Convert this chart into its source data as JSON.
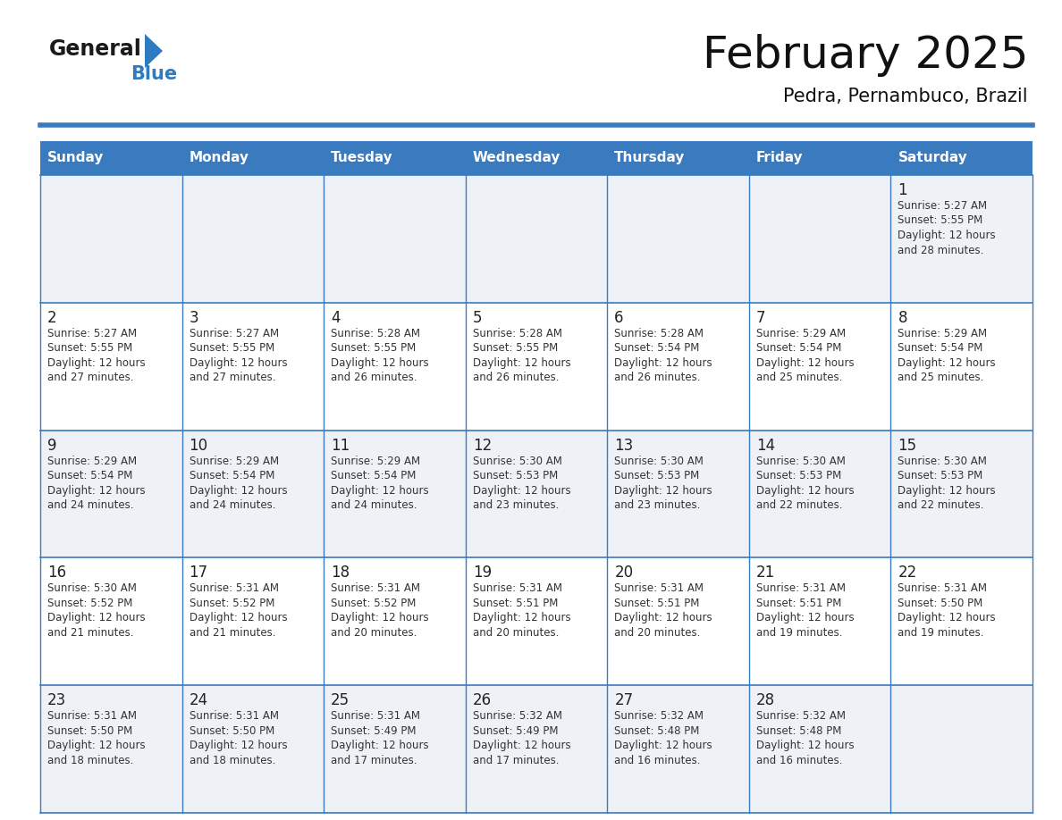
{
  "title": "February 2025",
  "subtitle": "Pedra, Pernambuco, Brazil",
  "days_of_week": [
    "Sunday",
    "Monday",
    "Tuesday",
    "Wednesday",
    "Thursday",
    "Friday",
    "Saturday"
  ],
  "header_bg": "#3a7abf",
  "header_text": "#ffffff",
  "cell_bg_light": "#eef2f7",
  "cell_bg_white": "#ffffff",
  "day_number_color": "#222222",
  "text_color": "#333333",
  "title_color": "#111111",
  "logo_general_color": "#1a1a1a",
  "logo_blue_color": "#2e7bbf",
  "weeks": [
    [
      {
        "day": null
      },
      {
        "day": null
      },
      {
        "day": null
      },
      {
        "day": null
      },
      {
        "day": null
      },
      {
        "day": null
      },
      {
        "day": 1,
        "sunrise": "5:27 AM",
        "sunset": "5:55 PM",
        "daylight": "12 hours",
        "daylight2": "and 28 minutes."
      }
    ],
    [
      {
        "day": 2,
        "sunrise": "5:27 AM",
        "sunset": "5:55 PM",
        "daylight": "12 hours",
        "daylight2": "and 27 minutes."
      },
      {
        "day": 3,
        "sunrise": "5:27 AM",
        "sunset": "5:55 PM",
        "daylight": "12 hours",
        "daylight2": "and 27 minutes."
      },
      {
        "day": 4,
        "sunrise": "5:28 AM",
        "sunset": "5:55 PM",
        "daylight": "12 hours",
        "daylight2": "and 26 minutes."
      },
      {
        "day": 5,
        "sunrise": "5:28 AM",
        "sunset": "5:55 PM",
        "daylight": "12 hours",
        "daylight2": "and 26 minutes."
      },
      {
        "day": 6,
        "sunrise": "5:28 AM",
        "sunset": "5:54 PM",
        "daylight": "12 hours",
        "daylight2": "and 26 minutes."
      },
      {
        "day": 7,
        "sunrise": "5:29 AM",
        "sunset": "5:54 PM",
        "daylight": "12 hours",
        "daylight2": "and 25 minutes."
      },
      {
        "day": 8,
        "sunrise": "5:29 AM",
        "sunset": "5:54 PM",
        "daylight": "12 hours",
        "daylight2": "and 25 minutes."
      }
    ],
    [
      {
        "day": 9,
        "sunrise": "5:29 AM",
        "sunset": "5:54 PM",
        "daylight": "12 hours",
        "daylight2": "and 24 minutes."
      },
      {
        "day": 10,
        "sunrise": "5:29 AM",
        "sunset": "5:54 PM",
        "daylight": "12 hours",
        "daylight2": "and 24 minutes."
      },
      {
        "day": 11,
        "sunrise": "5:29 AM",
        "sunset": "5:54 PM",
        "daylight": "12 hours",
        "daylight2": "and 24 minutes."
      },
      {
        "day": 12,
        "sunrise": "5:30 AM",
        "sunset": "5:53 PM",
        "daylight": "12 hours",
        "daylight2": "and 23 minutes."
      },
      {
        "day": 13,
        "sunrise": "5:30 AM",
        "sunset": "5:53 PM",
        "daylight": "12 hours",
        "daylight2": "and 23 minutes."
      },
      {
        "day": 14,
        "sunrise": "5:30 AM",
        "sunset": "5:53 PM",
        "daylight": "12 hours",
        "daylight2": "and 22 minutes."
      },
      {
        "day": 15,
        "sunrise": "5:30 AM",
        "sunset": "5:53 PM",
        "daylight": "12 hours",
        "daylight2": "and 22 minutes."
      }
    ],
    [
      {
        "day": 16,
        "sunrise": "5:30 AM",
        "sunset": "5:52 PM",
        "daylight": "12 hours",
        "daylight2": "and 21 minutes."
      },
      {
        "day": 17,
        "sunrise": "5:31 AM",
        "sunset": "5:52 PM",
        "daylight": "12 hours",
        "daylight2": "and 21 minutes."
      },
      {
        "day": 18,
        "sunrise": "5:31 AM",
        "sunset": "5:52 PM",
        "daylight": "12 hours",
        "daylight2": "and 20 minutes."
      },
      {
        "day": 19,
        "sunrise": "5:31 AM",
        "sunset": "5:51 PM",
        "daylight": "12 hours",
        "daylight2": "and 20 minutes."
      },
      {
        "day": 20,
        "sunrise": "5:31 AM",
        "sunset": "5:51 PM",
        "daylight": "12 hours",
        "daylight2": "and 20 minutes."
      },
      {
        "day": 21,
        "sunrise": "5:31 AM",
        "sunset": "5:51 PM",
        "daylight": "12 hours",
        "daylight2": "and 19 minutes."
      },
      {
        "day": 22,
        "sunrise": "5:31 AM",
        "sunset": "5:50 PM",
        "daylight": "12 hours",
        "daylight2": "and 19 minutes."
      }
    ],
    [
      {
        "day": 23,
        "sunrise": "5:31 AM",
        "sunset": "5:50 PM",
        "daylight": "12 hours",
        "daylight2": "and 18 minutes."
      },
      {
        "day": 24,
        "sunrise": "5:31 AM",
        "sunset": "5:50 PM",
        "daylight": "12 hours",
        "daylight2": "and 18 minutes."
      },
      {
        "day": 25,
        "sunrise": "5:31 AM",
        "sunset": "5:49 PM",
        "daylight": "12 hours",
        "daylight2": "and 17 minutes."
      },
      {
        "day": 26,
        "sunrise": "5:32 AM",
        "sunset": "5:49 PM",
        "daylight": "12 hours",
        "daylight2": "and 17 minutes."
      },
      {
        "day": 27,
        "sunrise": "5:32 AM",
        "sunset": "5:48 PM",
        "daylight": "12 hours",
        "daylight2": "and 16 minutes."
      },
      {
        "day": 28,
        "sunrise": "5:32 AM",
        "sunset": "5:48 PM",
        "daylight": "12 hours",
        "daylight2": "and 16 minutes."
      },
      {
        "day": null
      }
    ]
  ],
  "row_colors": [
    "#eef2f7",
    "#ffffff",
    "#eef2f7",
    "#ffffff",
    "#eef2f7"
  ]
}
